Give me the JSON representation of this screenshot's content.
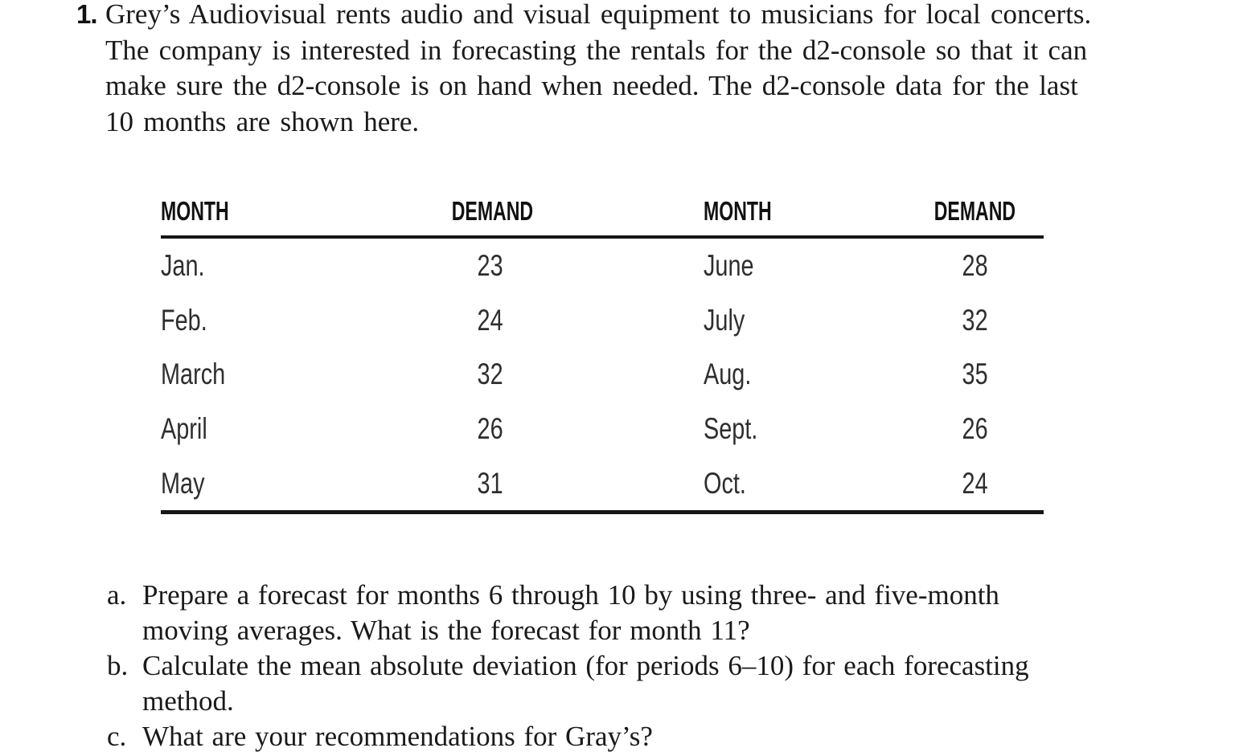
{
  "problem": {
    "number": "1.",
    "statement_lines": [
      "Grey’s Audiovisual rents audio and visual equipment to musicians for local concerts.",
      "The company is interested in forecasting the rentals for the d2-console so that it can",
      "make sure the d2-console is on hand when needed. The d2-console data for the last",
      "10 months are shown here."
    ]
  },
  "table": {
    "headers": [
      "MONTH",
      "DEMAND",
      "MONTH",
      "DEMAND"
    ],
    "rows": [
      [
        "Jan.",
        "23",
        "June",
        "28"
      ],
      [
        "Feb.",
        "24",
        "July",
        "32"
      ],
      [
        "March",
        "32",
        "Aug.",
        "35"
      ],
      [
        "April",
        "26",
        "Sept.",
        "26"
      ],
      [
        "May",
        "31",
        "Oct.",
        "24"
      ]
    ]
  },
  "questions": [
    {
      "label": "a.",
      "lines": [
        "Prepare a forecast for months 6 through 10 by using three- and five-month",
        "moving averages. What is the forecast for month 11?"
      ]
    },
    {
      "label": "b.",
      "lines": [
        "Calculate the mean absolute deviation (for periods 6–10) for each forecasting",
        "method."
      ]
    },
    {
      "label": "c.",
      "lines": [
        "What are your recommendations for Gray’s?"
      ]
    }
  ],
  "colors": {
    "text": "#1a1a1a",
    "table_text": "#2e2e2e",
    "rule": "#161616",
    "background": "#ffffff"
  }
}
